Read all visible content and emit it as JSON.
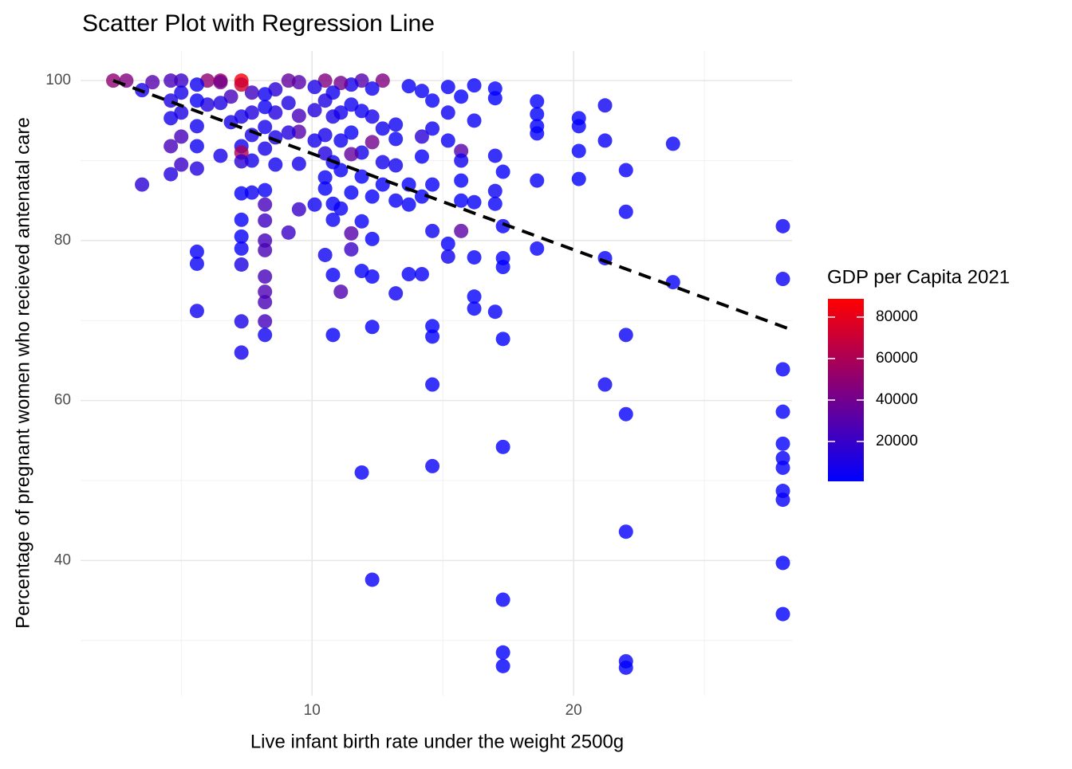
{
  "chart_data": {
    "type": "scatter",
    "title": "Scatter Plot with Regression Line",
    "x_label": "Live infant birth rate under the weight 2500g",
    "y_label": "Percentage of pregnant women who recieved antenatal care",
    "xlim": [
      1.15,
      28.35
    ],
    "ylim": [
      23.1,
      103.7
    ],
    "xticks": [
      10,
      20
    ],
    "yticks": [
      40,
      60,
      80,
      100
    ],
    "xminor": [
      5,
      15,
      25
    ],
    "yminor": [
      30,
      50,
      70,
      90
    ],
    "grid": true,
    "x": [
      28,
      28,
      28,
      28,
      28,
      28,
      28,
      28,
      28,
      28,
      28,
      23.8,
      23.8,
      22,
      22,
      22,
      22,
      22,
      22,
      22,
      21.2,
      21.2,
      21.2,
      21.2,
      20.2,
      20.2,
      20.2,
      20.2,
      18.6,
      18.6,
      18.6,
      18.6,
      18.6,
      18.6,
      17.3,
      17.3,
      17.3,
      17.3,
      17.3,
      17.3,
      17.3,
      17.3,
      17.3,
      17,
      17,
      17,
      17,
      17,
      17,
      16.2,
      16.2,
      16.2,
      16.2,
      16.2,
      16.2,
      15.7,
      15.7,
      15.7,
      15.7,
      15.7,
      15.7,
      15.2,
      15.2,
      15.2,
      15.2,
      15.2,
      14.6,
      14.6,
      14.6,
      14.6,
      14.6,
      14.6,
      14.6,
      14.6,
      14.2,
      14.2,
      14.2,
      14.2,
      14.2,
      13.7,
      13.7,
      13.7,
      13.7,
      13.2,
      13.2,
      13.2,
      13.2,
      13.2,
      12.7,
      12.7,
      12.7,
      12.7,
      12.3,
      12.3,
      12.3,
      12.3,
      12.3,
      12.3,
      12.3,
      12.3,
      11.9,
      11.9,
      11.9,
      11.9,
      11.9,
      11.9,
      11.9,
      11.5,
      11.5,
      11.5,
      11.5,
      11.5,
      11.5,
      11.5,
      11.1,
      11.1,
      11.1,
      11.1,
      11.1,
      11.1,
      10.8,
      10.8,
      10.8,
      10.8,
      10.8,
      10.8,
      10.8,
      10.5,
      10.5,
      10.5,
      10.5,
      10.5,
      10.5,
      10.5,
      10.1,
      10.1,
      10.1,
      10.1,
      9.5,
      9.5,
      9.5,
      9.5,
      9.5,
      9.1,
      9.1,
      9.1,
      9.1,
      8.6,
      8.6,
      8.6,
      8.6,
      8.2,
      8.2,
      8.2,
      8.2,
      8.2,
      8.2,
      8.2,
      8.2,
      8.2,
      8.2,
      8.2,
      8.2,
      8.2,
      8.2,
      7.7,
      7.7,
      7.7,
      7.7,
      7.7,
      7.3,
      7.3,
      7.3,
      7.3,
      7.3,
      7.3,
      7.3,
      7.3,
      7.3,
      7.3,
      7.3,
      7.3,
      7.3,
      6.9,
      6.9,
      6.5,
      6.5,
      6.5,
      6.5,
      6,
      6,
      5.6,
      5.6,
      5.6,
      5.6,
      5.6,
      5.6,
      5.6,
      5.6,
      5,
      5,
      5,
      5,
      5,
      4.6,
      4.6,
      4.6,
      4.6,
      4.6,
      3.9,
      3.5,
      3.5,
      2.9,
      2.4
    ],
    "y": [
      81.8,
      75.2,
      63.9,
      58.6,
      54.6,
      52.8,
      51.6,
      48.7,
      47.6,
      39.7,
      33.3,
      92.1,
      74.8,
      88.8,
      83.6,
      68.2,
      58.3,
      43.6,
      27.4,
      26.6,
      96.9,
      92.5,
      77.8,
      62,
      95.3,
      94.3,
      91.2,
      87.7,
      97.4,
      95.8,
      94.3,
      93.4,
      87.5,
      79,
      88.6,
      81.8,
      77.8,
      76.7,
      67.7,
      54.2,
      35.1,
      28.5,
      26.8,
      99,
      97.8,
      90.6,
      86.2,
      84.6,
      71.1,
      99.4,
      95,
      84.8,
      77.9,
      73,
      71.5,
      98,
      91.2,
      90,
      87.5,
      85,
      81.2,
      99.2,
      96,
      92.5,
      79.6,
      78,
      97.5,
      94,
      87,
      81.2,
      69.3,
      68,
      62,
      51.8,
      98.7,
      93,
      90.5,
      85.5,
      75.8,
      99.3,
      87,
      84.5,
      75.8,
      94.5,
      92.7,
      89.4,
      85,
      73.4,
      100,
      94,
      89.8,
      87,
      99,
      95.5,
      92.3,
      85.5,
      80.2,
      75.5,
      69.2,
      37.6,
      100,
      96.2,
      91,
      88,
      82.4,
      76.2,
      51,
      99.5,
      97,
      93.5,
      90.8,
      86,
      80.9,
      78.9,
      99.7,
      96,
      92.5,
      88.8,
      84,
      73.6,
      98.5,
      95.5,
      89.8,
      84.6,
      82.6,
      75.7,
      68.2,
      100,
      97.5,
      93.2,
      90.9,
      87.9,
      86.5,
      78.2,
      99.2,
      96.3,
      92.5,
      84.5,
      99.8,
      95.6,
      93.6,
      89.6,
      83.9,
      100,
      97.2,
      93.5,
      81,
      98.9,
      96,
      92.9,
      89.5,
      98.3,
      96.7,
      94.2,
      91.5,
      86.3,
      84.5,
      82.5,
      80,
      78.8,
      75.5,
      73.6,
      72.3,
      69.9,
      68.2,
      98.5,
      96,
      93.2,
      90,
      86,
      100,
      99.5,
      95.5,
      91.8,
      91,
      89.9,
      85.9,
      82.6,
      80.5,
      79,
      77,
      69.9,
      66,
      98,
      94.8,
      100,
      99.8,
      97.2,
      90.6,
      100,
      97,
      99.5,
      97.5,
      94.3,
      91.8,
      89,
      78.6,
      77.1,
      71.2,
      100,
      98.5,
      96,
      93,
      89.5,
      100,
      97.5,
      95.3,
      91.8,
      88.3,
      99.8,
      98.8,
      87,
      100,
      100
    ],
    "color_values": [
      3500,
      4000,
      2500,
      2000,
      1500,
      3000,
      2200,
      1800,
      2800,
      1200,
      1000,
      4000,
      2500,
      3000,
      2500,
      3500,
      2000,
      1500,
      2200,
      1800,
      5000,
      3500,
      2500,
      4000,
      1500,
      1800,
      2000,
      1200,
      1500,
      1200,
      1000,
      1800,
      2500,
      3000,
      1500,
      3000,
      2000,
      1800,
      1200,
      1400,
      1500,
      1000,
      1300,
      1500,
      1200,
      3500,
      5000,
      2500,
      2800,
      3000,
      4000,
      2500,
      3000,
      2000,
      2200,
      2000,
      30000,
      6000,
      1500,
      1800,
      32000,
      3500,
      5000,
      4000,
      1500,
      6000,
      2500,
      5000,
      3500,
      5000,
      2000,
      1500,
      3000,
      4000,
      4000,
      15000,
      2500,
      3000,
      3500,
      3500,
      3000,
      2500,
      3000,
      5000,
      4000,
      6000,
      3500,
      4500,
      45000,
      6000,
      7000,
      3000,
      5000,
      8000,
      40000,
      2500,
      2000,
      3000,
      2500,
      3500,
      30000,
      5000,
      8000,
      3000,
      3500,
      2500,
      3000,
      8000,
      6000,
      4000,
      35000,
      3000,
      30000,
      20000,
      40000,
      7000,
      5000,
      3500,
      4000,
      28000,
      6000,
      9000,
      5000,
      2500,
      4000,
      3500,
      2500,
      45000,
      10000,
      8000,
      12000,
      4000,
      3000,
      5000,
      9000,
      12000,
      7000,
      5000,
      30000,
      25000,
      30000,
      8000,
      20000,
      35000,
      10000,
      12000,
      20000,
      15000,
      12000,
      9000,
      6000,
      6000,
      5000,
      7000,
      8000,
      4000,
      25000,
      22000,
      24000,
      26000,
      25000,
      27000,
      26000,
      24000,
      5000,
      22000,
      12000,
      9000,
      8000,
      5000,
      85000,
      70000,
      9000,
      6000,
      60000,
      15000,
      3000,
      3000,
      2500,
      3500,
      10000,
      9000,
      7000,
      25000,
      8000,
      55000,
      40000,
      10000,
      8000,
      50000,
      12000,
      5000,
      4000,
      6000,
      5000,
      12000,
      3000,
      4000,
      5000,
      20000,
      8000,
      10000,
      25000,
      20000,
      25000,
      10000,
      8000,
      25000,
      12000,
      30000,
      9000,
      15000,
      45000,
      50000
    ],
    "colorbar": {
      "title": "GDP per Capita 2021",
      "lim": [
        800,
        88800
      ],
      "ticks": [
        20000,
        40000,
        60000,
        80000
      ],
      "low": "#0000ff",
      "high": "#ff0000"
    },
    "regression": {
      "x": [
        2.4,
        28.2
      ],
      "y": [
        100,
        69
      ],
      "color": "#000000"
    }
  }
}
